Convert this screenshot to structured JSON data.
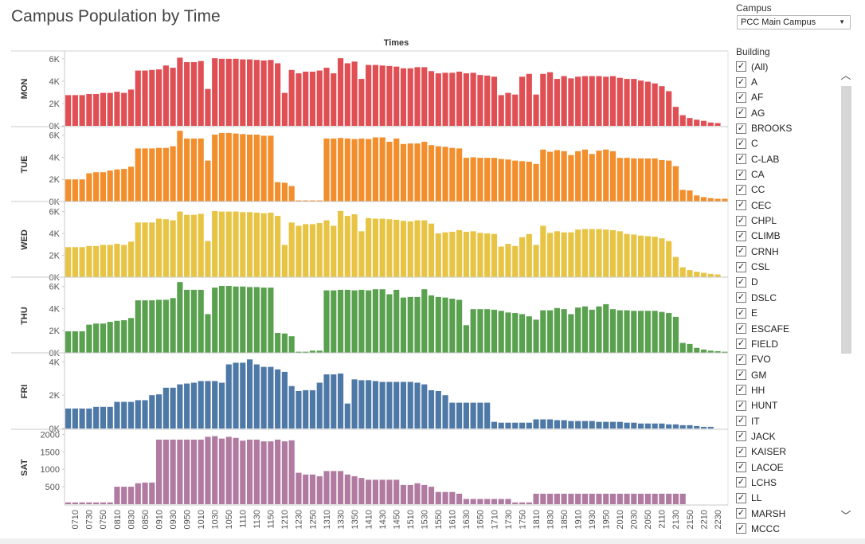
{
  "title": "Campus Population by Time",
  "filters": {
    "campus_label": "Campus",
    "campus_value": "PCC Main Campus",
    "building_label": "Building",
    "buildings": [
      "(All)",
      "A",
      "AF",
      "AG",
      "BROOKS",
      "C",
      "C-LAB",
      "CA",
      "CC",
      "CEC",
      "CHPL",
      "CLIMB",
      "CRNH",
      "CSL",
      "D",
      "DSLC",
      "E",
      "ESCAFE",
      "FIELD",
      "FVO",
      "GM",
      "HH",
      "HUNT",
      "IT",
      "JACK",
      "KAISER",
      "LACOE",
      "LCHS",
      "LL",
      "MARSH",
      "MCCC"
    ]
  },
  "colors": {
    "MON": "#df4f54",
    "TUE": "#f28e2b",
    "WED": "#e8c445",
    "THU": "#59a14f",
    "FRI": "#4e79a7",
    "SAT": "#b07aa1"
  },
  "chart_data": {
    "type": "bar",
    "xlabel": "Times",
    "x_tick_labels": [
      "0710",
      "0730",
      "0750",
      "0810",
      "0830",
      "0850",
      "0910",
      "0930",
      "0950",
      "1010",
      "1030",
      "1050",
      "1110",
      "1130",
      "1150",
      "1210",
      "1230",
      "1250",
      "1310",
      "1330",
      "1350",
      "1410",
      "1430",
      "1450",
      "1510",
      "1530",
      "1550",
      "1610",
      "1630",
      "1650",
      "1710",
      "1730",
      "1750",
      "1810",
      "1830",
      "1850",
      "1910",
      "1930",
      "1950",
      "2010",
      "2030",
      "2050",
      "2110",
      "2130",
      "2150",
      "2210",
      "2230"
    ],
    "categories": [
      "0700",
      "0710",
      "0720",
      "0730",
      "0740",
      "0750",
      "0800",
      "0810",
      "0820",
      "0830",
      "0840",
      "0850",
      "0900",
      "0910",
      "0920",
      "0930",
      "0940",
      "0950",
      "1000",
      "1010",
      "1020",
      "1030",
      "1040",
      "1050",
      "1100",
      "1110",
      "1120",
      "1130",
      "1140",
      "1150",
      "1200",
      "1210",
      "1220",
      "1230",
      "1240",
      "1250",
      "1300",
      "1310",
      "1320",
      "1330",
      "1340",
      "1350",
      "1400",
      "1410",
      "1420",
      "1430",
      "1440",
      "1450",
      "1500",
      "1510",
      "1520",
      "1530",
      "1540",
      "1550",
      "1600",
      "1610",
      "1620",
      "1630",
      "1640",
      "1650",
      "1700",
      "1710",
      "1720",
      "1730",
      "1740",
      "1750",
      "1800",
      "1810",
      "1820",
      "1830",
      "1840",
      "1850",
      "1900",
      "1910",
      "1920",
      "1930",
      "1940",
      "1950",
      "2000",
      "2010",
      "2020",
      "2030",
      "2040",
      "2050",
      "2100",
      "2110",
      "2120",
      "2130",
      "2140",
      "2150",
      "2200",
      "2210",
      "2220",
      "2230",
      "2240"
    ],
    "series": [
      {
        "name": "MON",
        "yticks": [
          0,
          2000,
          4000,
          6000
        ],
        "ytick_labels": [
          "0K",
          "2K",
          "4K",
          "6K"
        ],
        "ymax": 6700,
        "values": [
          2750,
          2750,
          2750,
          2850,
          2850,
          2950,
          2950,
          3050,
          2950,
          3250,
          4950,
          4950,
          5000,
          5050,
          5400,
          5200,
          6100,
          5700,
          5700,
          5800,
          3300,
          6050,
          6000,
          6000,
          6000,
          5950,
          5950,
          5900,
          5850,
          5900,
          5600,
          2950,
          5000,
          4700,
          4850,
          4850,
          4950,
          5200,
          4700,
          6050,
          5600,
          5750,
          4200,
          5450,
          5450,
          5400,
          5350,
          5300,
          5150,
          5150,
          5250,
          5250,
          4900,
          4700,
          4750,
          4750,
          4850,
          4700,
          4750,
          4550,
          4500,
          4400,
          2750,
          2950,
          2800,
          4400,
          4650,
          2800,
          4650,
          4800,
          4200,
          4450,
          4250,
          4400,
          4450,
          4450,
          4450,
          4400,
          4450,
          4300,
          4200,
          4200,
          4050,
          3950,
          3800,
          3550,
          3100,
          1700,
          950,
          700,
          550,
          450,
          300,
          250,
          0
        ]
      },
      {
        "name": "TUE",
        "yticks": [
          0,
          2000,
          4000,
          6000
        ],
        "ytick_labels": [
          "0K",
          "2K",
          "4K",
          "6K"
        ],
        "ymax": 6700,
        "values": [
          2000,
          2000,
          2000,
          2550,
          2650,
          2650,
          2800,
          2900,
          2950,
          3150,
          4800,
          4800,
          4800,
          4850,
          4850,
          5000,
          6400,
          5700,
          5700,
          5700,
          3700,
          6050,
          6200,
          6200,
          6150,
          6100,
          6050,
          6050,
          5950,
          5950,
          1750,
          1700,
          1400,
          100,
          100,
          100,
          100,
          5700,
          5700,
          5750,
          5700,
          5650,
          5700,
          5650,
          5800,
          5800,
          5400,
          5700,
          5200,
          5250,
          5250,
          5400,
          5100,
          5000,
          4950,
          4850,
          4800,
          3950,
          4000,
          3950,
          3950,
          3950,
          3850,
          3800,
          3700,
          3650,
          3600,
          3400,
          4700,
          4500,
          4650,
          4550,
          4200,
          4550,
          4700,
          4300,
          4600,
          4700,
          4550,
          3950,
          3950,
          3900,
          3900,
          3900,
          3900,
          3750,
          3700,
          3200,
          1050,
          1000,
          550,
          400,
          300,
          250,
          250
        ]
      },
      {
        "name": "WED",
        "yticks": [
          0,
          2000,
          4000,
          6000
        ],
        "ytick_labels": [
          "0K",
          "2K",
          "4K",
          "6K"
        ],
        "ymax": 6700,
        "values": [
          2750,
          2750,
          2750,
          2850,
          2850,
          2950,
          2950,
          3050,
          2950,
          3250,
          5000,
          5000,
          5000,
          5350,
          5300,
          5200,
          6000,
          5700,
          5700,
          5800,
          3300,
          6050,
          6000,
          6000,
          6000,
          5950,
          5950,
          5900,
          5850,
          5900,
          5600,
          2950,
          5000,
          4700,
          4850,
          4850,
          4950,
          5200,
          4700,
          6050,
          5600,
          5750,
          4200,
          5400,
          5350,
          5350,
          5300,
          5250,
          5150,
          5100,
          5200,
          5200,
          4900,
          4000,
          4100,
          4150,
          4300,
          4150,
          4200,
          4050,
          4000,
          3950,
          2800,
          3050,
          2850,
          3650,
          3950,
          2950,
          4700,
          4050,
          4200,
          4100,
          4100,
          4350,
          4400,
          4400,
          4400,
          4350,
          4300,
          4200,
          3950,
          3900,
          3800,
          3750,
          3700,
          3550,
          3300,
          1850,
          900,
          650,
          500,
          400,
          300,
          250,
          0
        ]
      },
      {
        "name": "THU",
        "yticks": [
          0,
          2000,
          4000,
          6000
        ],
        "ytick_labels": [
          "0K",
          "2K",
          "4K",
          "6K"
        ],
        "ymax": 6700,
        "values": [
          1950,
          1950,
          1950,
          2550,
          2650,
          2650,
          2800,
          2900,
          2950,
          3150,
          4750,
          4750,
          4750,
          4800,
          4800,
          4950,
          6400,
          5700,
          5700,
          5700,
          3500,
          5900,
          6050,
          6050,
          6000,
          6000,
          5950,
          5950,
          5900,
          5900,
          1800,
          1750,
          1500,
          100,
          100,
          200,
          200,
          5650,
          5650,
          5700,
          5700,
          5650,
          5700,
          5650,
          5750,
          5750,
          5300,
          5700,
          5000,
          5050,
          5050,
          5750,
          5200,
          5050,
          5000,
          4900,
          4800,
          2500,
          3950,
          3950,
          3950,
          3900,
          3800,
          3650,
          3600,
          3500,
          3300,
          3000,
          3850,
          3850,
          4050,
          3950,
          3500,
          4100,
          4200,
          3900,
          4200,
          4400,
          3950,
          3850,
          3850,
          3800,
          3800,
          3800,
          3800,
          3700,
          3600,
          3250,
          900,
          800,
          450,
          300,
          200,
          150,
          100
        ]
      },
      {
        "name": "FRI",
        "yticks": [
          0,
          2000,
          4000
        ],
        "ytick_labels": [
          "0K",
          "2K",
          "4K"
        ],
        "ymax": 4400,
        "values": [
          1200,
          1200,
          1200,
          1200,
          1300,
          1300,
          1300,
          1600,
          1600,
          1600,
          1700,
          1700,
          2000,
          2050,
          2450,
          2450,
          2650,
          2700,
          2750,
          2850,
          2850,
          2850,
          2750,
          3850,
          3950,
          3950,
          4150,
          3850,
          3700,
          3700,
          3550,
          3400,
          2550,
          2250,
          2300,
          2300,
          2750,
          3250,
          3250,
          3300,
          1500,
          2950,
          2900,
          2900,
          2850,
          2800,
          2800,
          2800,
          2800,
          2800,
          2750,
          2650,
          2300,
          2250,
          2000,
          1550,
          1550,
          1550,
          1550,
          1550,
          1550,
          400,
          350,
          350,
          350,
          350,
          350,
          550,
          550,
          550,
          500,
          500,
          450,
          450,
          450,
          450,
          400,
          400,
          400,
          400,
          350,
          350,
          300,
          300,
          300,
          300,
          250,
          250,
          200,
          200,
          150,
          100,
          100,
          0,
          0
        ]
      },
      {
        "name": "SAT",
        "yticks": [
          500,
          1000,
          1500,
          2000
        ],
        "ytick_labels": [
          "500",
          "1000",
          "1500",
          "2000"
        ],
        "ymax": 2100,
        "values": [
          50,
          50,
          50,
          50,
          50,
          50,
          50,
          500,
          500,
          500,
          600,
          620,
          620,
          1850,
          1850,
          1850,
          1850,
          1850,
          1850,
          1850,
          1930,
          1950,
          1880,
          1930,
          1900,
          1820,
          1850,
          1850,
          1800,
          1800,
          1850,
          1800,
          1830,
          900,
          850,
          850,
          800,
          950,
          950,
          950,
          850,
          800,
          750,
          700,
          700,
          700,
          700,
          700,
          550,
          550,
          600,
          550,
          500,
          350,
          350,
          350,
          300,
          150,
          150,
          150,
          150,
          150,
          150,
          150,
          50,
          50,
          50,
          300,
          300,
          300,
          300,
          300,
          300,
          300,
          300,
          300,
          300,
          300,
          300,
          300,
          300,
          300,
          300,
          300,
          300,
          300,
          300,
          300,
          300,
          0,
          0,
          0,
          0,
          0,
          0
        ]
      }
    ],
    "grid": false,
    "legend": "none"
  }
}
